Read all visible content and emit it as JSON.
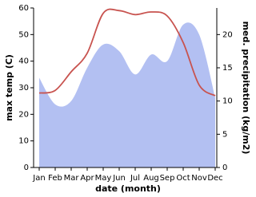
{
  "chart_data": {
    "type": "line-area",
    "categories": [
      "Jan",
      "Feb",
      "Mar",
      "Apr",
      "May",
      "Jun",
      "Jul",
      "Aug",
      "Sep",
      "Oct",
      "Nov",
      "Dec"
    ],
    "x_label": "date (month)",
    "y_label": "max temp (C)",
    "y2_label": "med. precipitation (kg/m2)",
    "ylim": [
      0,
      60
    ],
    "yticks": [
      0,
      10,
      20,
      30,
      40,
      50,
      60
    ],
    "y2lim": [
      0,
      24
    ],
    "y2ticks": [
      0,
      5,
      10,
      15,
      20
    ],
    "series": [
      {
        "name": "med. precipitation",
        "color": "#b3c0f2",
        "axis": "y2",
        "kind": "area",
        "values": [
          13.5,
          9.5,
          10,
          15,
          18.5,
          17.5,
          14,
          17,
          16,
          21.5,
          20,
          10.5
        ]
      },
      {
        "name": "max temp",
        "color": "#c8534f",
        "kind": "line",
        "values": [
          28,
          29,
          36,
          43,
          58,
          59,
          57.5,
          58.5,
          57,
          47,
          31,
          27
        ]
      }
    ]
  }
}
